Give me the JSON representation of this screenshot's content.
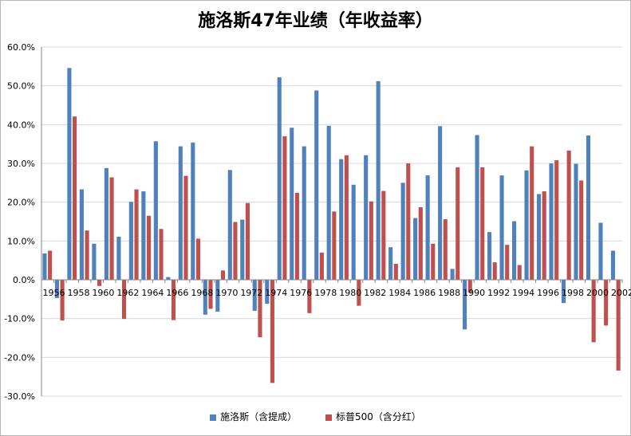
{
  "chart_data": {
    "type": "bar",
    "title": "施洛斯47年业绩（年收益率）",
    "xlabel": "",
    "ylabel": "",
    "ylim": [
      -30,
      60
    ],
    "y_ticks": [
      "60.0%",
      "50.0%",
      "40.0%",
      "30.0%",
      "20.0%",
      "10.0%",
      "0.0%",
      "-10.0%",
      "-20.0%",
      "-30.0%"
    ],
    "grid": true,
    "legend_position": "bottom",
    "categories": [
      "1956",
      "1957",
      "1958",
      "1959",
      "1960",
      "1961",
      "1962",
      "1963",
      "1964",
      "1965",
      "1966",
      "1967",
      "1968",
      "1969",
      "1970",
      "1971",
      "1972",
      "1973",
      "1974",
      "1975",
      "1976",
      "1977",
      "1978",
      "1979",
      "1980",
      "1981",
      "1982",
      "1983",
      "1984",
      "1985",
      "1986",
      "1987",
      "1988",
      "1989",
      "1990",
      "1991",
      "1992",
      "1993",
      "1994",
      "1995",
      "1996",
      "1997",
      "1998",
      "1999",
      "2000",
      "2001",
      "2002"
    ],
    "x_tick_labels": [
      "1956",
      "1958",
      "1960",
      "1962",
      "1964",
      "1966",
      "1968",
      "1970",
      "1972",
      "1974",
      "1976",
      "1978",
      "1980",
      "1982",
      "1984",
      "1986",
      "1988",
      "1990",
      "1992",
      "1994",
      "1996",
      "1998",
      "2000",
      "2002"
    ],
    "series": [
      {
        "name": "施洛斯（含提成）",
        "color": "#4f81bd",
        "values": [
          6.8,
          -4.7,
          54.6,
          23.3,
          9.3,
          28.8,
          11.1,
          20.1,
          22.8,
          35.7,
          0.7,
          34.4,
          35.4,
          -9.0,
          -8.2,
          28.3,
          15.5,
          -8.0,
          -6.2,
          52.2,
          39.2,
          34.4,
          48.8,
          39.7,
          31.1,
          24.5,
          32.1,
          51.2,
          8.4,
          25.0,
          15.9,
          26.9,
          39.6,
          2.8,
          -12.8,
          37.3,
          12.3,
          26.9,
          15.1,
          28.2,
          22.1,
          30.0,
          -6.0,
          29.9,
          37.2,
          14.7,
          7.5
        ]
      },
      {
        "name": "标普500（含分红）",
        "color": "#c0504d",
        "values": [
          7.5,
          -10.5,
          42.1,
          12.7,
          -1.6,
          26.4,
          -10.1,
          23.3,
          16.5,
          13.1,
          -10.4,
          26.8,
          10.6,
          -7.5,
          2.4,
          14.9,
          19.8,
          -14.8,
          -26.6,
          37.0,
          22.4,
          -8.6,
          7.0,
          17.6,
          32.1,
          -6.7,
          20.2,
          22.9,
          4.1,
          30.0,
          18.7,
          9.3,
          15.6,
          29.0,
          -3.3,
          29.0,
          4.5,
          9.0,
          3.8,
          34.4,
          22.8,
          30.8,
          33.3,
          25.6,
          -16.1,
          -11.8,
          -23.4
        ]
      }
    ]
  }
}
